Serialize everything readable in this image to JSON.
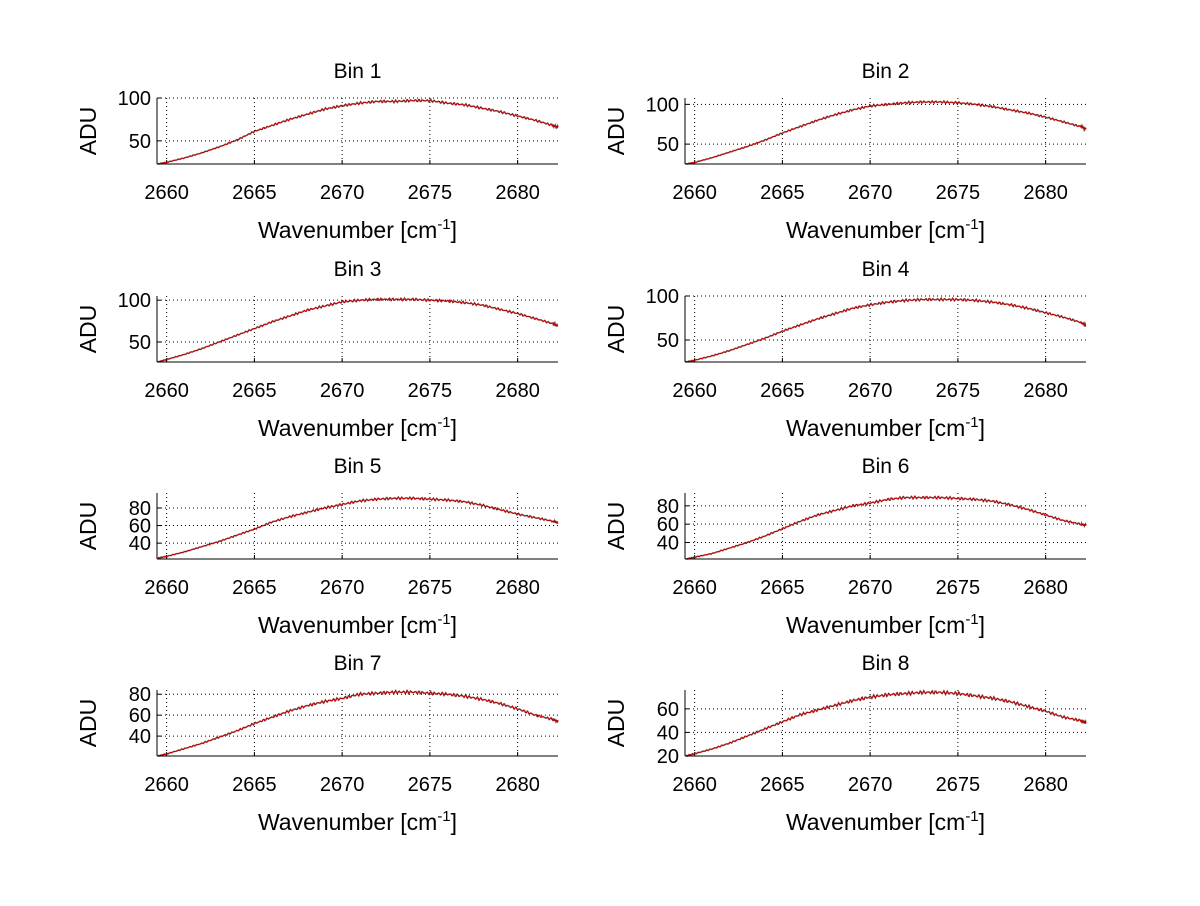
{
  "chart_data": [
    {
      "type": "line",
      "title": "Bin 1",
      "xlabel": "Wavenumber [cm",
      "xlabel_sup": "-1",
      "xlabel_end": "]",
      "ylabel": "ADU",
      "xlim": [
        2659.45,
        2682.3
      ],
      "ylim": [
        23,
        100
      ],
      "xticks": [
        2660,
        2665,
        2670,
        2675,
        2680
      ],
      "yticks": [
        50,
        100
      ],
      "grid": true,
      "series": [
        {
          "name": "Bin 1",
          "color": "#c00000",
          "y": [
            23,
            25,
            30,
            36,
            43,
            51,
            61,
            68,
            75,
            81,
            87,
            91,
            94,
            96,
            96,
            97,
            97,
            94,
            92,
            88,
            84,
            79,
            74,
            68,
            66
          ]
        }
      ]
    },
    {
      "type": "line",
      "title": "Bin 2",
      "xlabel": "Wavenumber [cm",
      "xlabel_sup": "-1",
      "xlabel_end": "]",
      "ylabel": "ADU",
      "xlim": [
        2659.45,
        2682.3
      ],
      "ylim": [
        25,
        108
      ],
      "xticks": [
        2660,
        2665,
        2670,
        2675,
        2680
      ],
      "yticks": [
        50,
        100
      ],
      "grid": true,
      "series": [
        {
          "name": "Bin 2",
          "color": "#c00000",
          "y": [
            25,
            27,
            33,
            40,
            47,
            55,
            64,
            72,
            80,
            87,
            93,
            98,
            100,
            102,
            103,
            103,
            102,
            100,
            97,
            93,
            89,
            84,
            78,
            72,
            69
          ]
        }
      ]
    },
    {
      "type": "line",
      "title": "Bin 3",
      "xlabel": "Wavenumber [cm",
      "xlabel_sup": "-1",
      "xlabel_end": "]",
      "ylabel": "ADU",
      "xlim": [
        2659.45,
        2682.3
      ],
      "ylim": [
        26,
        105
      ],
      "xticks": [
        2660,
        2665,
        2670,
        2675,
        2680
      ],
      "yticks": [
        50,
        100
      ],
      "grid": true,
      "series": [
        {
          "name": "Bin 3",
          "color": "#c00000",
          "y": [
            26,
            29,
            35,
            42,
            50,
            58,
            66,
            74,
            81,
            88,
            93,
            98,
            100,
            101,
            101,
            101,
            100,
            99,
            97,
            94,
            89,
            84,
            78,
            72,
            69
          ]
        }
      ]
    },
    {
      "type": "line",
      "title": "Bin 4",
      "xlabel": "Wavenumber [cm",
      "xlabel_sup": "-1",
      "xlabel_end": "]",
      "ylabel": "ADU",
      "xlim": [
        2659.45,
        2682.3
      ],
      "ylim": [
        25,
        100
      ],
      "xticks": [
        2660,
        2665,
        2670,
        2675,
        2680
      ],
      "yticks": [
        50,
        100
      ],
      "grid": true,
      "series": [
        {
          "name": "Bin 4",
          "color": "#c00000",
          "y": [
            25,
            27,
            32,
            38,
            45,
            52,
            60,
            67,
            74,
            80,
            86,
            90,
            93,
            95,
            96,
            96,
            96,
            95,
            93,
            90,
            86,
            81,
            76,
            70,
            66
          ]
        }
      ]
    },
    {
      "type": "line",
      "title": "Bin 5",
      "xlabel": "Wavenumber [cm",
      "xlabel_sup": "-1",
      "xlabel_end": "]",
      "ylabel": "ADU",
      "xlim": [
        2659.45,
        2682.3
      ],
      "ylim": [
        22,
        97
      ],
      "xticks": [
        2660,
        2665,
        2670,
        2675,
        2680
      ],
      "yticks": [
        40,
        60,
        80
      ],
      "grid": true,
      "series": [
        {
          "name": "Bin 5",
          "color": "#c00000",
          "y": [
            23,
            25,
            30,
            36,
            42,
            49,
            56,
            64,
            70,
            75,
            80,
            84,
            88,
            90,
            91,
            91,
            90,
            89,
            87,
            83,
            78,
            73,
            69,
            65,
            63
          ]
        }
      ]
    },
    {
      "type": "line",
      "title": "Bin 6",
      "xlabel": "Wavenumber [cm",
      "xlabel_sup": "-1",
      "xlabel_end": "]",
      "ylabel": "ADU",
      "xlim": [
        2659.45,
        2682.3
      ],
      "ylim": [
        22,
        94
      ],
      "xticks": [
        2660,
        2665,
        2670,
        2675,
        2680
      ],
      "yticks": [
        40,
        60,
        80
      ],
      "grid": true,
      "series": [
        {
          "name": "Bin 6",
          "color": "#c00000",
          "y": [
            22,
            24,
            28,
            34,
            40,
            47,
            55,
            63,
            70,
            75,
            80,
            83,
            87,
            89,
            89,
            89,
            88,
            87,
            85,
            81,
            76,
            70,
            64,
            60,
            59
          ]
        }
      ]
    },
    {
      "type": "line",
      "title": "Bin 7",
      "xlabel": "Wavenumber [cm",
      "xlabel_sup": "-1",
      "xlabel_end": "]",
      "ylabel": "ADU",
      "xlim": [
        2659.45,
        2682.3
      ],
      "ylim": [
        21,
        84
      ],
      "xticks": [
        2660,
        2665,
        2670,
        2675,
        2680
      ],
      "yticks": [
        40,
        60,
        80
      ],
      "grid": true,
      "series": [
        {
          "name": "Bin 7",
          "color": "#c00000",
          "y": [
            21,
            23,
            28,
            33,
            39,
            45,
            52,
            58,
            64,
            69,
            73,
            76,
            80,
            81,
            82,
            82,
            81,
            80,
            78,
            75,
            71,
            66,
            60,
            56,
            54
          ]
        }
      ]
    },
    {
      "type": "line",
      "title": "Bin 8",
      "xlabel": "Wavenumber [cm",
      "xlabel_sup": "-1",
      "xlabel_end": "]",
      "ylabel": "ADU",
      "xlim": [
        2659.45,
        2682.3
      ],
      "ylim": [
        20,
        76
      ],
      "xticks": [
        2660,
        2665,
        2670,
        2675,
        2680
      ],
      "yticks": [
        20,
        40,
        60
      ],
      "grid": true,
      "series": [
        {
          "name": "Bin 8",
          "color": "#c00000",
          "y": [
            20,
            22,
            26,
            31,
            37,
            43,
            49,
            55,
            59,
            63,
            67,
            70,
            72,
            73,
            74,
            74,
            73,
            71,
            69,
            66,
            62,
            58,
            53,
            50,
            48
          ]
        }
      ]
    }
  ],
  "x_grid": [
    2659.5,
    2660,
    2661,
    2662,
    2663,
    2664,
    2665,
    2666,
    2667,
    2668,
    2669,
    2670,
    2671,
    2672,
    2673,
    2674,
    2675,
    2676,
    2677,
    2678,
    2679,
    2680,
    2681,
    2682,
    2682.3
  ]
}
